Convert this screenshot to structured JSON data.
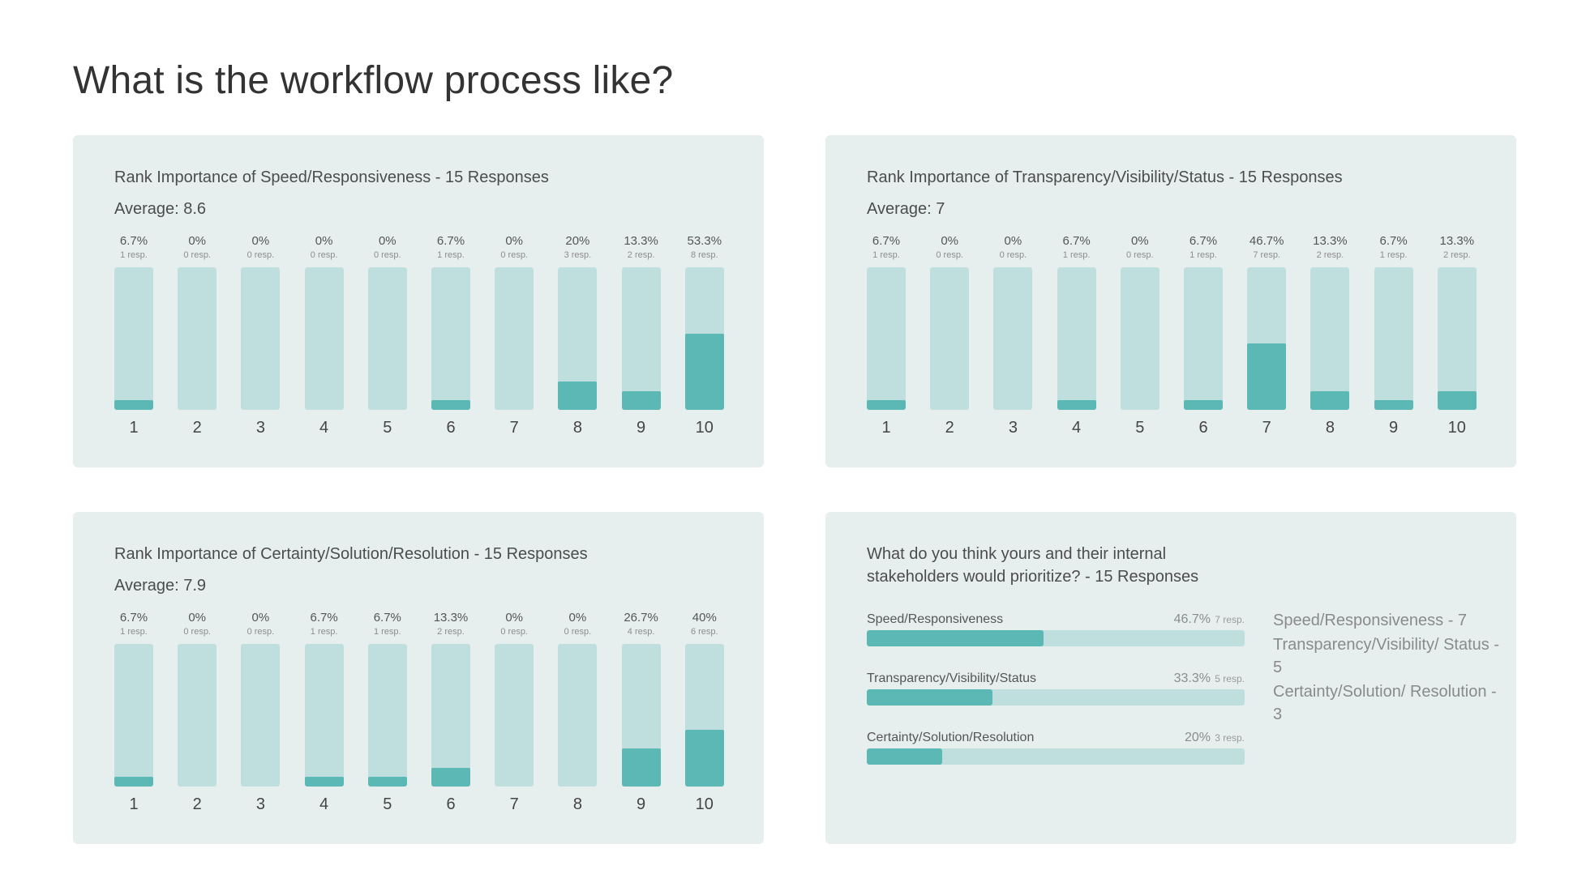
{
  "page": {
    "title": "What is the workflow process like?"
  },
  "colors": {
    "card_bg": "#e7efee",
    "track": "#bfdfdf",
    "fill": "#5bb8b4"
  },
  "chart_data": [
    {
      "type": "bar",
      "title": "Rank Importance of Speed/Responsiveness - 15 Responses",
      "average": "Average: 8.6",
      "categories": [
        "1",
        "2",
        "3",
        "4",
        "5",
        "6",
        "7",
        "8",
        "9",
        "10"
      ],
      "values": [
        6.7,
        0,
        0,
        0,
        0,
        6.7,
        0,
        20,
        13.3,
        53.3
      ],
      "value_labels": [
        "6.7%",
        "0%",
        "0%",
        "0%",
        "0%",
        "6.7%",
        "0%",
        "20%",
        "13.3%",
        "53.3%"
      ],
      "responses": [
        "1 resp.",
        "0 resp.",
        "0 resp.",
        "0 resp.",
        "0 resp.",
        "1 resp.",
        "0 resp.",
        "3 resp.",
        "2 resp.",
        "8 resp."
      ],
      "ylim": [
        0,
        100
      ]
    },
    {
      "type": "bar",
      "title": "Rank Importance of Transparency/Visibility/Status - 15 Responses",
      "average": "Average: 7",
      "categories": [
        "1",
        "2",
        "3",
        "4",
        "5",
        "6",
        "7",
        "8",
        "9",
        "10"
      ],
      "values": [
        6.7,
        0,
        0,
        6.7,
        0,
        6.7,
        46.7,
        13.3,
        6.7,
        13.3
      ],
      "value_labels": [
        "6.7%",
        "0%",
        "0%",
        "6.7%",
        "0%",
        "6.7%",
        "46.7%",
        "13.3%",
        "6.7%",
        "13.3%"
      ],
      "responses": [
        "1 resp.",
        "0 resp.",
        "0 resp.",
        "1 resp.",
        "0 resp.",
        "1 resp.",
        "7 resp.",
        "2 resp.",
        "1 resp.",
        "2 resp."
      ],
      "ylim": [
        0,
        100
      ]
    },
    {
      "type": "bar",
      "title": "Rank Importance of Certainty/Solution/Resolution - 15 Responses",
      "average": "Average: 7.9",
      "categories": [
        "1",
        "2",
        "3",
        "4",
        "5",
        "6",
        "7",
        "8",
        "9",
        "10"
      ],
      "values": [
        6.7,
        0,
        0,
        6.7,
        6.7,
        13.3,
        0,
        0,
        26.7,
        40
      ],
      "value_labels": [
        "6.7%",
        "0%",
        "0%",
        "6.7%",
        "6.7%",
        "13.3%",
        "0%",
        "0%",
        "26.7%",
        "40%"
      ],
      "responses": [
        "1 resp.",
        "0 resp.",
        "0 resp.",
        "1 resp.",
        "1 resp.",
        "2 resp.",
        "0 resp.",
        "0 resp.",
        "4 resp.",
        "6 resp."
      ],
      "ylim": [
        0,
        100
      ]
    },
    {
      "type": "bar",
      "orientation": "horizontal",
      "title": "What do you think yours and their internal stakeholders would prioritize? - 15 Responses",
      "categories": [
        "Speed/Responsiveness",
        "Transparency/Visibility/Status",
        "Certainty/Solution/Resolution"
      ],
      "values": [
        46.7,
        33.3,
        20
      ],
      "value_labels": [
        "46.7%",
        "33.3%",
        "20%"
      ],
      "responses": [
        "7 resp.",
        "5 resp.",
        "3 resp."
      ],
      "xlim": [
        0,
        100
      ],
      "notes": [
        "Speed/Responsiveness - 7",
        "Transparency/Visibility/ Status - 5",
        "Certainty/Solution/ Resolution - 3"
      ]
    }
  ]
}
